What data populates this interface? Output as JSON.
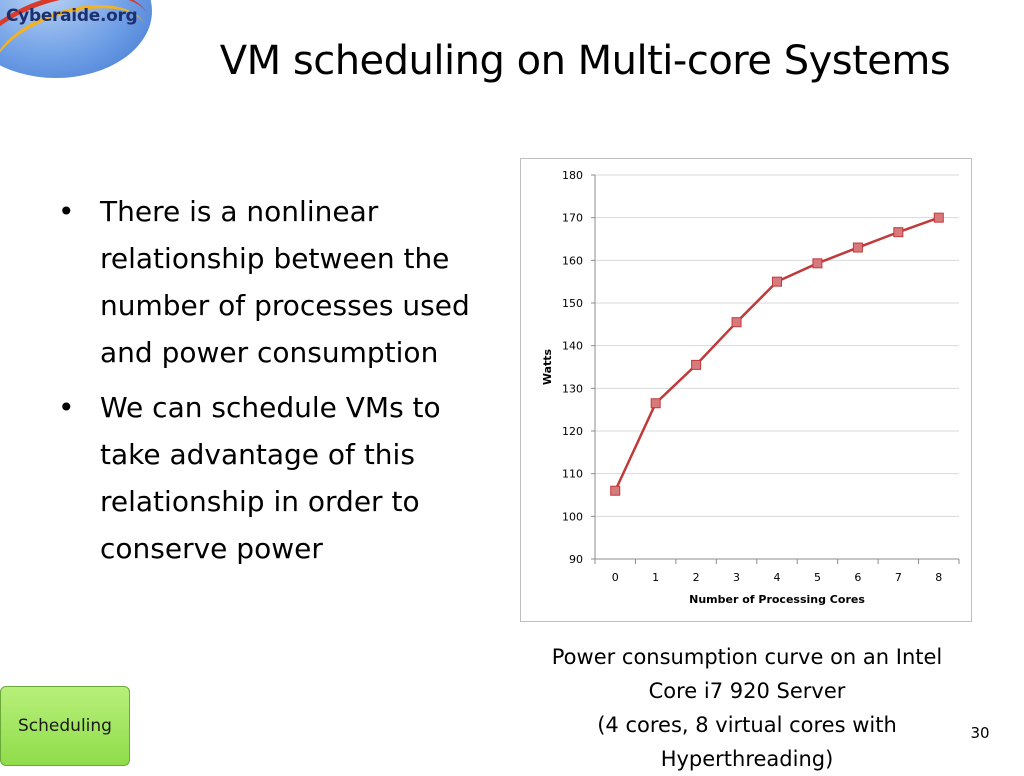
{
  "logo": {
    "text": "Cyberaide.org"
  },
  "slide": {
    "title": "VM scheduling on Multi-core Systems",
    "bullets": [
      "There is a nonlinear relationship between the number of processes used and power consumption",
      "We can schedule VMs to take advantage of this relationship in order to conserve power"
    ],
    "bullet_glyph": "•",
    "caption_lines": [
      "Power consumption curve on an Intel",
      "Core i7 920 Server",
      "(4 cores, 8 virtual cores with",
      "Hyperthreading)"
    ],
    "section": "Scheduling",
    "page_number": "30"
  },
  "chart_data": {
    "type": "line",
    "title": "",
    "xlabel": "Number of Processing Cores",
    "ylabel": "Watts",
    "x": [
      0,
      1,
      2,
      3,
      4,
      5,
      6,
      7,
      8
    ],
    "x_tick_labels": [
      "0",
      "1",
      "2",
      "3",
      "4",
      "5",
      "6",
      "7",
      "8"
    ],
    "ylim": [
      90,
      180
    ],
    "y_ticks": [
      90,
      100,
      110,
      120,
      130,
      140,
      150,
      160,
      170,
      180
    ],
    "y_tick_labels": [
      "90",
      "100",
      "110",
      "120",
      "130",
      "140",
      "150",
      "160",
      "170",
      "180"
    ],
    "grid": "horizontal",
    "legend": "none",
    "series": [
      {
        "values": [
          106,
          126.5,
          135.5,
          145.5,
          155,
          159.3,
          163,
          166.6,
          170
        ],
        "color": "#c0393b"
      }
    ]
  }
}
